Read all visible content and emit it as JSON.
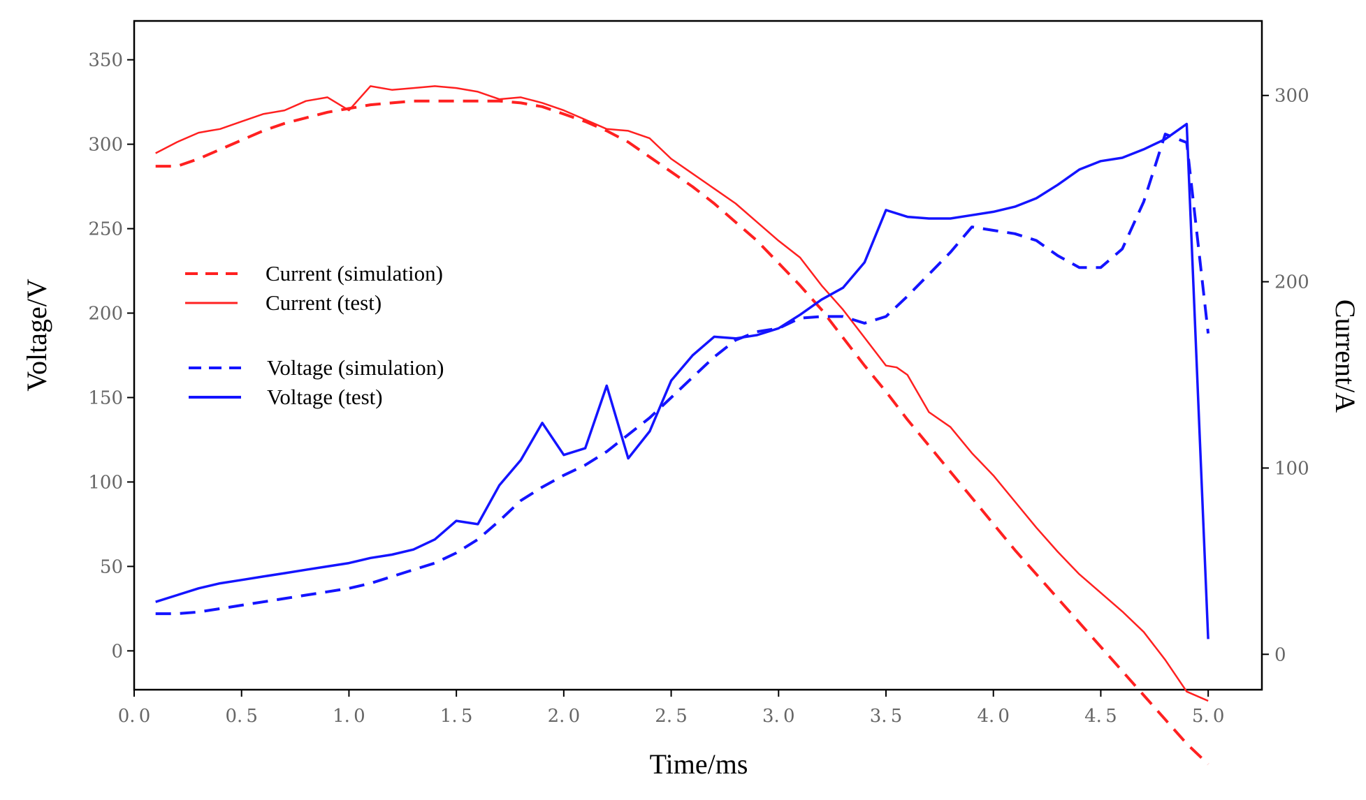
{
  "chart_data": {
    "type": "line",
    "xlabel": "Time/ms",
    "ylabel_left": "Voltage/V",
    "ylabel_right": "Current/A",
    "xlim": [
      0,
      5.25
    ],
    "xticks": [
      "0.0",
      "0.5",
      "1.0",
      "1.5",
      "2.0",
      "2.5",
      "3.0",
      "3.5",
      "4.0",
      "4.5",
      "5.0"
    ],
    "ylim_left": [
      -23,
      373
    ],
    "yticks_left": [
      "0",
      "50",
      "100",
      "150",
      "200",
      "250",
      "300",
      "350"
    ],
    "ylim_right": [
      -19,
      340
    ],
    "yticks_right": [
      "0",
      "100",
      "200",
      "300"
    ],
    "grid": false,
    "legend_position": "left",
    "series": [
      {
        "name": "Current (simulation)",
        "axis": "right",
        "style": "dashed",
        "color": "#ff2020",
        "x": [
          0.1,
          0.2,
          0.3,
          0.4,
          0.5,
          0.6,
          0.7,
          0.8,
          0.9,
          1.0,
          1.1,
          1.2,
          1.3,
          1.4,
          1.5,
          1.6,
          1.7,
          1.8,
          1.9,
          2.0,
          2.1,
          2.2,
          2.3,
          2.4,
          2.5,
          2.6,
          2.7,
          2.8,
          2.9,
          3.0,
          3.1,
          3.2,
          3.3,
          3.4,
          3.5,
          3.6,
          3.7,
          3.8,
          3.9,
          4.0,
          4.1,
          4.2,
          4.3,
          4.4,
          4.5,
          4.6,
          4.7,
          4.8,
          4.9,
          5.0
        ],
        "values": [
          262,
          262,
          266,
          271,
          276,
          281,
          285,
          288,
          291,
          293,
          295,
          296,
          297,
          297,
          297,
          297,
          297,
          296,
          294,
          290,
          286,
          281,
          275,
          267,
          259,
          251,
          242,
          232,
          222,
          210,
          198,
          185,
          170,
          155,
          141,
          126,
          112,
          98,
          84,
          70,
          56,
          43,
          30,
          17,
          4,
          -9,
          -22,
          -35,
          -48,
          -59
        ]
      },
      {
        "name": "Current (test)",
        "axis": "right",
        "style": "solid",
        "color": "#ff2020",
        "x": [
          0.1,
          0.2,
          0.3,
          0.35,
          0.4,
          0.5,
          0.6,
          0.7,
          0.8,
          0.9,
          1.0,
          1.1,
          1.2,
          1.3,
          1.4,
          1.5,
          1.6,
          1.7,
          1.8,
          1.9,
          2.0,
          2.1,
          2.2,
          2.3,
          2.4,
          2.5,
          2.6,
          2.7,
          2.8,
          2.9,
          3.0,
          3.1,
          3.2,
          3.3,
          3.4,
          3.5,
          3.55,
          3.6,
          3.7,
          3.8,
          3.9,
          4.0,
          4.1,
          4.2,
          4.3,
          4.4,
          4.5,
          4.6,
          4.7,
          4.8,
          4.9,
          5.0
        ],
        "values": [
          269,
          275,
          280,
          281,
          282,
          286,
          290,
          292,
          297,
          299,
          292,
          305,
          303,
          304,
          305,
          304,
          302,
          298,
          299,
          296,
          292,
          287,
          282,
          281,
          277,
          266,
          258,
          250,
          242,
          232,
          222,
          213,
          198,
          185,
          170,
          155,
          154,
          150,
          130,
          122,
          108,
          96,
          82,
          68,
          55,
          43,
          33,
          23,
          12,
          -3,
          -20,
          -25
        ]
      },
      {
        "name": "Voltage (simulation)",
        "axis": "left",
        "style": "dashed",
        "color": "#1414ff",
        "x": [
          0.1,
          0.2,
          0.3,
          0.4,
          0.5,
          0.6,
          0.7,
          0.8,
          0.9,
          1.0,
          1.1,
          1.2,
          1.3,
          1.4,
          1.5,
          1.6,
          1.7,
          1.8,
          1.9,
          2.0,
          2.1,
          2.2,
          2.3,
          2.4,
          2.5,
          2.6,
          2.7,
          2.8,
          2.9,
          3.0,
          3.1,
          3.2,
          3.3,
          3.4,
          3.5,
          3.6,
          3.7,
          3.8,
          3.9,
          4.0,
          4.1,
          4.2,
          4.3,
          4.4,
          4.5,
          4.6,
          4.7,
          4.8,
          4.9,
          5.0
        ],
        "values": [
          22,
          22,
          23,
          25,
          27,
          29,
          31,
          33,
          35,
          37,
          40,
          44,
          48,
          52,
          58,
          66,
          77,
          89,
          97,
          104,
          110,
          118,
          128,
          138,
          150,
          162,
          174,
          184,
          189,
          191,
          197,
          198,
          198,
          194,
          198,
          210,
          223,
          236,
          251,
          249,
          247,
          243,
          234,
          227,
          227,
          238,
          266,
          306,
          301,
          188
        ]
      },
      {
        "name": "Voltage (test)",
        "axis": "left",
        "style": "solid",
        "color": "#1414ff",
        "x": [
          0.1,
          0.2,
          0.3,
          0.4,
          0.5,
          0.6,
          0.7,
          0.8,
          0.9,
          1.0,
          1.1,
          1.2,
          1.3,
          1.4,
          1.5,
          1.6,
          1.7,
          1.8,
          1.9,
          2.0,
          2.1,
          2.2,
          2.3,
          2.4,
          2.5,
          2.6,
          2.7,
          2.8,
          2.9,
          3.0,
          3.1,
          3.2,
          3.3,
          3.4,
          3.5,
          3.6,
          3.7,
          3.8,
          3.9,
          4.0,
          4.1,
          4.2,
          4.3,
          4.4,
          4.5,
          4.6,
          4.7,
          4.8,
          4.9,
          5.0
        ],
        "values": [
          29,
          33,
          37,
          40,
          42,
          44,
          46,
          48,
          50,
          52,
          55,
          57,
          60,
          66,
          77,
          75,
          98,
          113,
          135,
          116,
          120,
          157,
          114,
          130,
          160,
          175,
          186,
          185,
          187,
          191,
          199,
          208,
          215,
          230,
          261,
          257,
          256,
          256,
          258,
          260,
          263,
          268,
          276,
          285,
          290,
          292,
          297,
          303,
          312,
          7
        ]
      }
    ]
  }
}
